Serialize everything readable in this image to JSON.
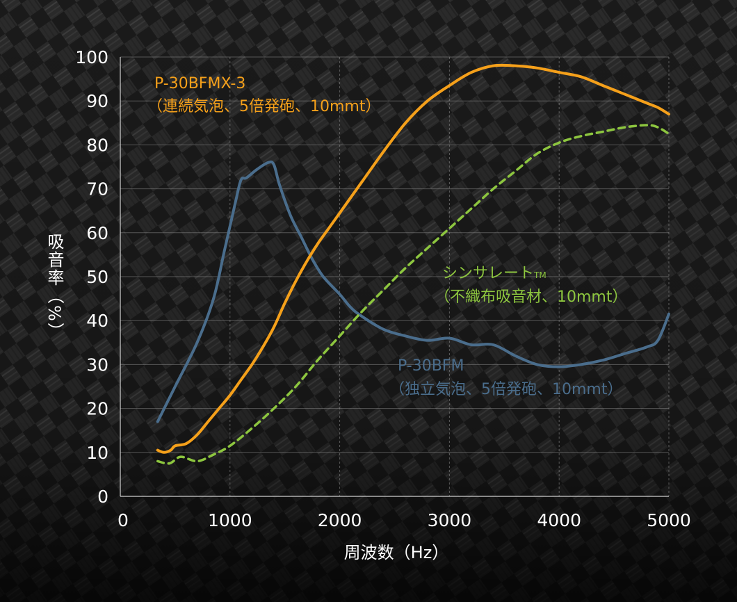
{
  "chart_data": {
    "type": "line",
    "xlabel": "周波数（Hz）",
    "ylabel": "吸音率（%）",
    "xlim": [
      0,
      5000
    ],
    "ylim": [
      0,
      100
    ],
    "xticks": [
      "0",
      "1000",
      "2000",
      "3000",
      "4000",
      "5000"
    ],
    "yticks": [
      "0",
      "10",
      "20",
      "30",
      "40",
      "50",
      "60",
      "70",
      "80",
      "90",
      "100"
    ],
    "grid": true,
    "series": [
      {
        "name": "P-30BFMX-3",
        "label": "P-30BFMX-3",
        "sublabel": "（連続気泡、5倍発砲、10mmt）",
        "color": "#f5a01a",
        "style": "solid",
        "x": [
          340,
          400,
          460,
          500,
          600,
          700,
          800,
          900,
          1000,
          1100,
          1200,
          1300,
          1400,
          1500,
          1600,
          1700,
          1800,
          1900,
          2000,
          2200,
          2400,
          2600,
          2800,
          3000,
          3200,
          3400,
          3600,
          3800,
          4000,
          4200,
          4400,
          4600,
          4800,
          4900,
          5000
        ],
        "y": [
          10.5,
          10,
          10.5,
          11.5,
          12,
          14,
          17,
          20,
          23,
          26.5,
          30,
          34,
          38.5,
          44,
          49,
          53.5,
          57.5,
          61,
          64.5,
          71.5,
          78.5,
          85,
          90,
          93.5,
          96.5,
          98,
          98,
          97.5,
          96.5,
          95.5,
          93.5,
          91.5,
          89.5,
          88.5,
          87
        ]
      },
      {
        "name": "シンサレート",
        "label": "シンサレート",
        "label_sup": "TM",
        "sublabel": "（不織布吸音材、10mmt）",
        "color": "#8dc63f",
        "style": "dashed",
        "x": [
          340,
          450,
          550,
          700,
          850,
          1000,
          1200,
          1400,
          1600,
          1800,
          2000,
          2200,
          2400,
          2600,
          2800,
          3000,
          3200,
          3400,
          3600,
          3800,
          4000,
          4200,
          4400,
          4600,
          4800,
          4900,
          5000
        ],
        "y": [
          8,
          7.5,
          9,
          8,
          9.5,
          11.5,
          15.5,
          20,
          25,
          31,
          36.5,
          42,
          47,
          52,
          56.5,
          61,
          65.5,
          70,
          74,
          78,
          80.5,
          82,
          83,
          84,
          84.5,
          84,
          82.5
        ]
      },
      {
        "name": "P-30BFM",
        "label": "P-30BFM",
        "sublabel": "（独立気泡、5倍発砲、10mmt）",
        "color": "#4a6d8c",
        "style": "solid",
        "x": [
          340,
          500,
          700,
          850,
          950,
          1050,
          1100,
          1150,
          1250,
          1350,
          1400,
          1450,
          1550,
          1650,
          1750,
          1850,
          2000,
          2100,
          2200,
          2400,
          2600,
          2800,
          3000,
          3200,
          3400,
          3600,
          3800,
          4000,
          4200,
          4400,
          4600,
          4800,
          4900,
          5000
        ],
        "y": [
          17,
          25,
          35,
          45,
          56,
          67,
          72,
          72.5,
          74.5,
          76,
          75.5,
          71,
          64,
          59,
          54,
          50,
          46,
          43,
          41,
          38,
          36.5,
          35.5,
          36,
          34.5,
          34.5,
          32,
          30,
          29.5,
          30,
          31,
          32.5,
          34,
          35.5,
          41.5
        ]
      }
    ]
  }
}
